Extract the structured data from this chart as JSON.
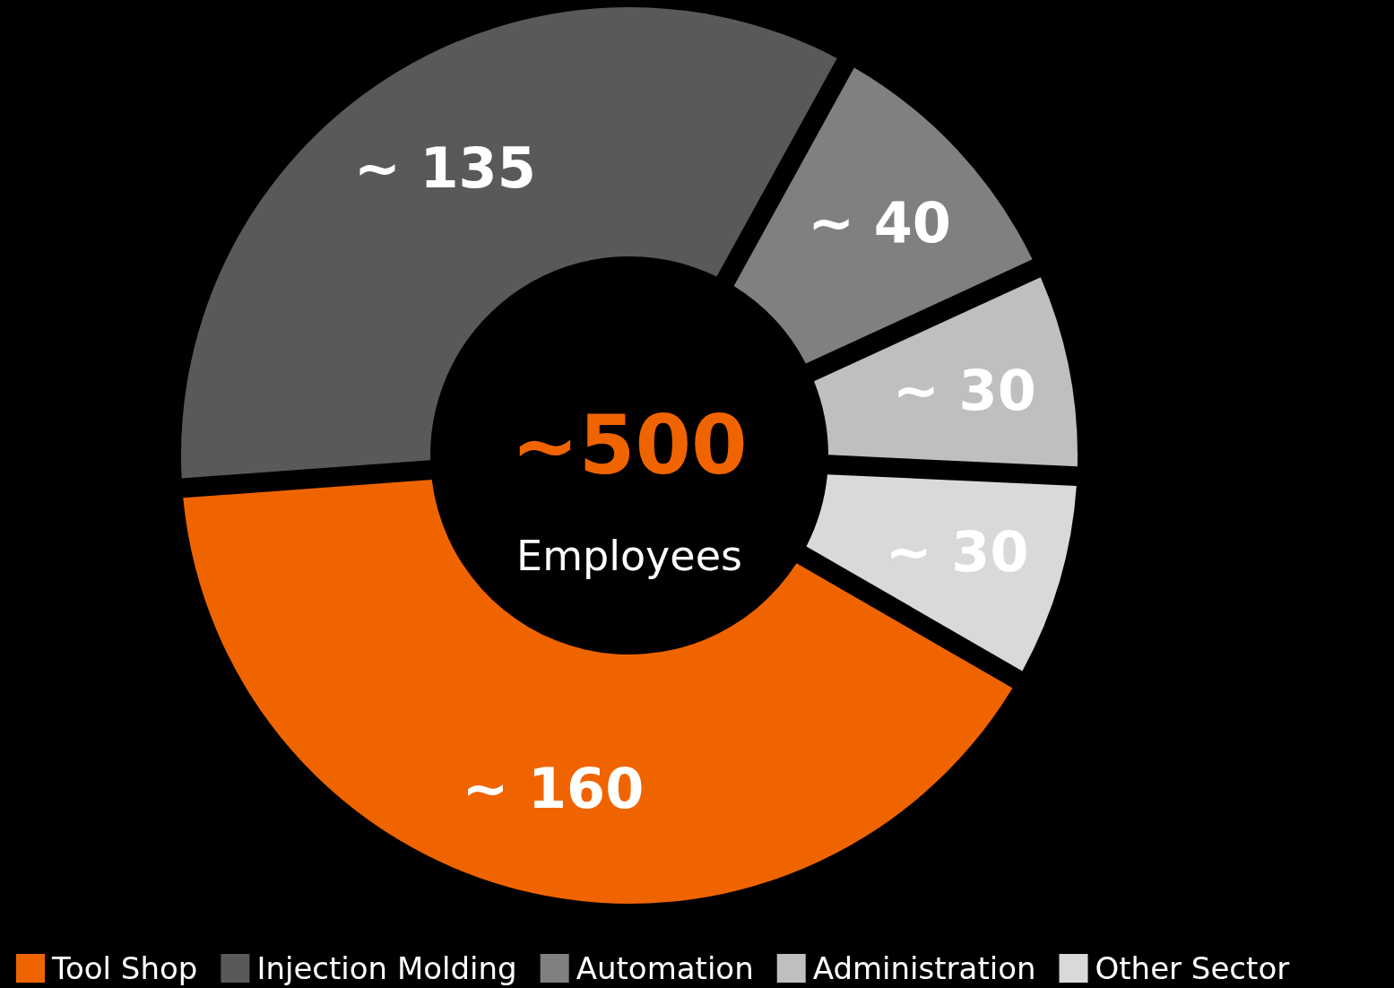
{
  "chart_data": {
    "type": "donut",
    "categories": [
      "Tool Shop",
      "Injection Molding",
      "Automation",
      "Administration",
      "Other Sector"
    ],
    "values": [
      160,
      135,
      40,
      30,
      30
    ],
    "colors": [
      "#f06400",
      "#595959",
      "#808080",
      "#bfbfbf",
      "#d9d9d9"
    ],
    "value_labels": [
      "~ 160",
      "~ 135",
      "~ 40",
      "~ 30",
      "~ 30"
    ],
    "annotations": [
      "~500",
      "Employees"
    ],
    "legend": "bottom"
  }
}
